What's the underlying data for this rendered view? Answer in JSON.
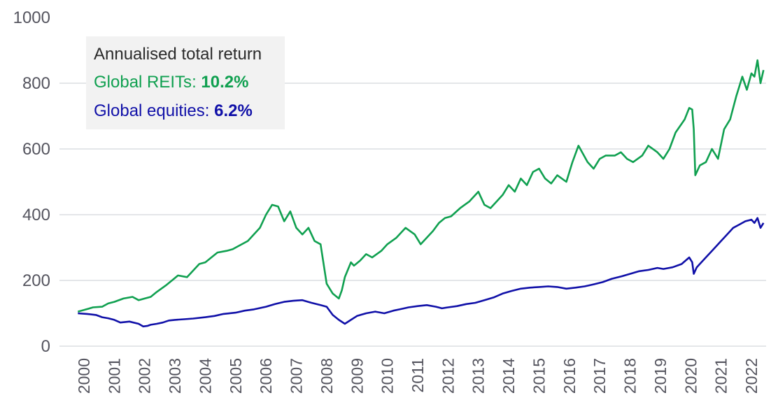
{
  "chart_data": {
    "type": "line",
    "xlabel": "",
    "ylabel": "",
    "ylim": [
      0,
      1000
    ],
    "yticks": [
      0,
      200,
      400,
      600,
      800,
      1000
    ],
    "xticks": [
      "2000",
      "2001",
      "2002",
      "2003",
      "2004",
      "2005",
      "2006",
      "2007",
      "2008",
      "2009",
      "2010",
      "2011",
      "2012",
      "2013",
      "2014",
      "2015",
      "2016",
      "2017",
      "2018",
      "2019",
      "2020",
      "2021",
      "2022"
    ],
    "grid": true,
    "legend": {
      "title": "Annualised total return",
      "entries": [
        {
          "name": "Global REITs",
          "value": "10.2%"
        },
        {
          "name": "Global equities",
          "value": "6.2%"
        }
      ],
      "placement": "top-left"
    },
    "series": [
      {
        "name": "Global REITs",
        "color": "#10a050",
        "x": [
          1999.8,
          2000.0,
          2000.3,
          2000.6,
          2000.8,
          2001.0,
          2001.3,
          2001.6,
          2001.8,
          2002.0,
          2002.2,
          2002.4,
          2002.7,
          2002.9,
          2003.1,
          2003.4,
          2003.6,
          2003.8,
          2004.0,
          2004.2,
          2004.4,
          2004.7,
          2004.9,
          2005.1,
          2005.4,
          2005.6,
          2005.8,
          2006.0,
          2006.2,
          2006.4,
          2006.6,
          2006.8,
          2007.0,
          2007.2,
          2007.4,
          2007.6,
          2007.8,
          2008.0,
          2008.2,
          2008.4,
          2008.5,
          2008.6,
          2008.8,
          2008.9,
          2009.1,
          2009.3,
          2009.5,
          2009.8,
          2010.0,
          2010.3,
          2010.6,
          2010.9,
          2011.1,
          2011.3,
          2011.5,
          2011.7,
          2011.9,
          2012.1,
          2012.4,
          2012.7,
          2013.0,
          2013.2,
          2013.4,
          2013.6,
          2013.8,
          2014.0,
          2014.2,
          2014.4,
          2014.6,
          2014.8,
          2015.0,
          2015.2,
          2015.4,
          2015.6,
          2015.9,
          2016.1,
          2016.3,
          2016.6,
          2016.8,
          2017.0,
          2017.2,
          2017.5,
          2017.7,
          2017.9,
          2018.1,
          2018.4,
          2018.6,
          2018.9,
          2019.1,
          2019.3,
          2019.5,
          2019.8,
          2019.95,
          2020.05,
          2020.1,
          2020.15,
          2020.3,
          2020.5,
          2020.7,
          2020.9,
          2021.1,
          2021.3,
          2021.5,
          2021.7,
          2021.85,
          2022.0,
          2022.1,
          2022.2,
          2022.3,
          2022.4
        ],
        "values": [
          105,
          110,
          118,
          120,
          130,
          135,
          145,
          150,
          140,
          145,
          150,
          165,
          185,
          200,
          215,
          210,
          230,
          250,
          255,
          270,
          285,
          290,
          295,
          305,
          320,
          340,
          360,
          400,
          430,
          425,
          380,
          410,
          360,
          340,
          360,
          320,
          310,
          190,
          160,
          145,
          170,
          210,
          255,
          245,
          260,
          280,
          270,
          290,
          310,
          330,
          360,
          340,
          310,
          330,
          350,
          375,
          390,
          395,
          420,
          440,
          470,
          430,
          420,
          440,
          460,
          490,
          470,
          510,
          490,
          530,
          540,
          510,
          495,
          520,
          500,
          560,
          610,
          560,
          540,
          570,
          580,
          580,
          590,
          570,
          560,
          580,
          610,
          590,
          570,
          600,
          650,
          690,
          725,
          720,
          660,
          520,
          550,
          560,
          600,
          570,
          660,
          690,
          760,
          820,
          780,
          830,
          820,
          870,
          800,
          840
        ]
      },
      {
        "name": "Global equities",
        "color": "#1010a8",
        "x": [
          1999.8,
          2000.1,
          2000.4,
          2000.6,
          2000.8,
          2001.0,
          2001.2,
          2001.5,
          2001.8,
          2001.95,
          2002.1,
          2002.2,
          2002.4,
          2002.6,
          2002.8,
          2003.0,
          2003.3,
          2003.6,
          2004.0,
          2004.3,
          2004.6,
          2005.0,
          2005.3,
          2005.6,
          2006.0,
          2006.3,
          2006.6,
          2006.9,
          2007.2,
          2007.5,
          2007.8,
          2008.0,
          2008.2,
          2008.4,
          2008.6,
          2008.8,
          2009.0,
          2009.3,
          2009.6,
          2009.9,
          2010.2,
          2010.4,
          2010.7,
          2011.0,
          2011.3,
          2011.6,
          2011.8,
          2012.0,
          2012.3,
          2012.6,
          2012.9,
          2013.2,
          2013.5,
          2013.8,
          2014.1,
          2014.4,
          2014.7,
          2015.0,
          2015.3,
          2015.6,
          2015.9,
          2016.2,
          2016.5,
          2016.8,
          2017.1,
          2017.4,
          2017.7,
          2018.0,
          2018.3,
          2018.6,
          2018.9,
          2019.1,
          2019.4,
          2019.7,
          2019.95,
          2020.05,
          2020.1,
          2020.2,
          2020.4,
          2020.6,
          2020.8,
          2021.0,
          2021.2,
          2021.4,
          2021.6,
          2021.8,
          2022.0,
          2022.1,
          2022.2,
          2022.3,
          2022.4
        ],
        "values": [
          100,
          98,
          95,
          88,
          85,
          80,
          72,
          75,
          68,
          60,
          62,
          65,
          68,
          72,
          78,
          80,
          82,
          84,
          88,
          92,
          98,
          102,
          108,
          112,
          120,
          128,
          135,
          138,
          140,
          132,
          125,
          120,
          95,
          80,
          68,
          80,
          92,
          100,
          105,
          100,
          108,
          112,
          118,
          122,
          125,
          120,
          115,
          118,
          122,
          128,
          132,
          140,
          148,
          160,
          168,
          175,
          178,
          180,
          182,
          180,
          175,
          178,
          182,
          188,
          195,
          205,
          212,
          220,
          228,
          232,
          238,
          235,
          240,
          250,
          270,
          255,
          220,
          240,
          260,
          280,
          300,
          320,
          340,
          360,
          370,
          380,
          385,
          375,
          390,
          360,
          375
        ]
      }
    ]
  }
}
